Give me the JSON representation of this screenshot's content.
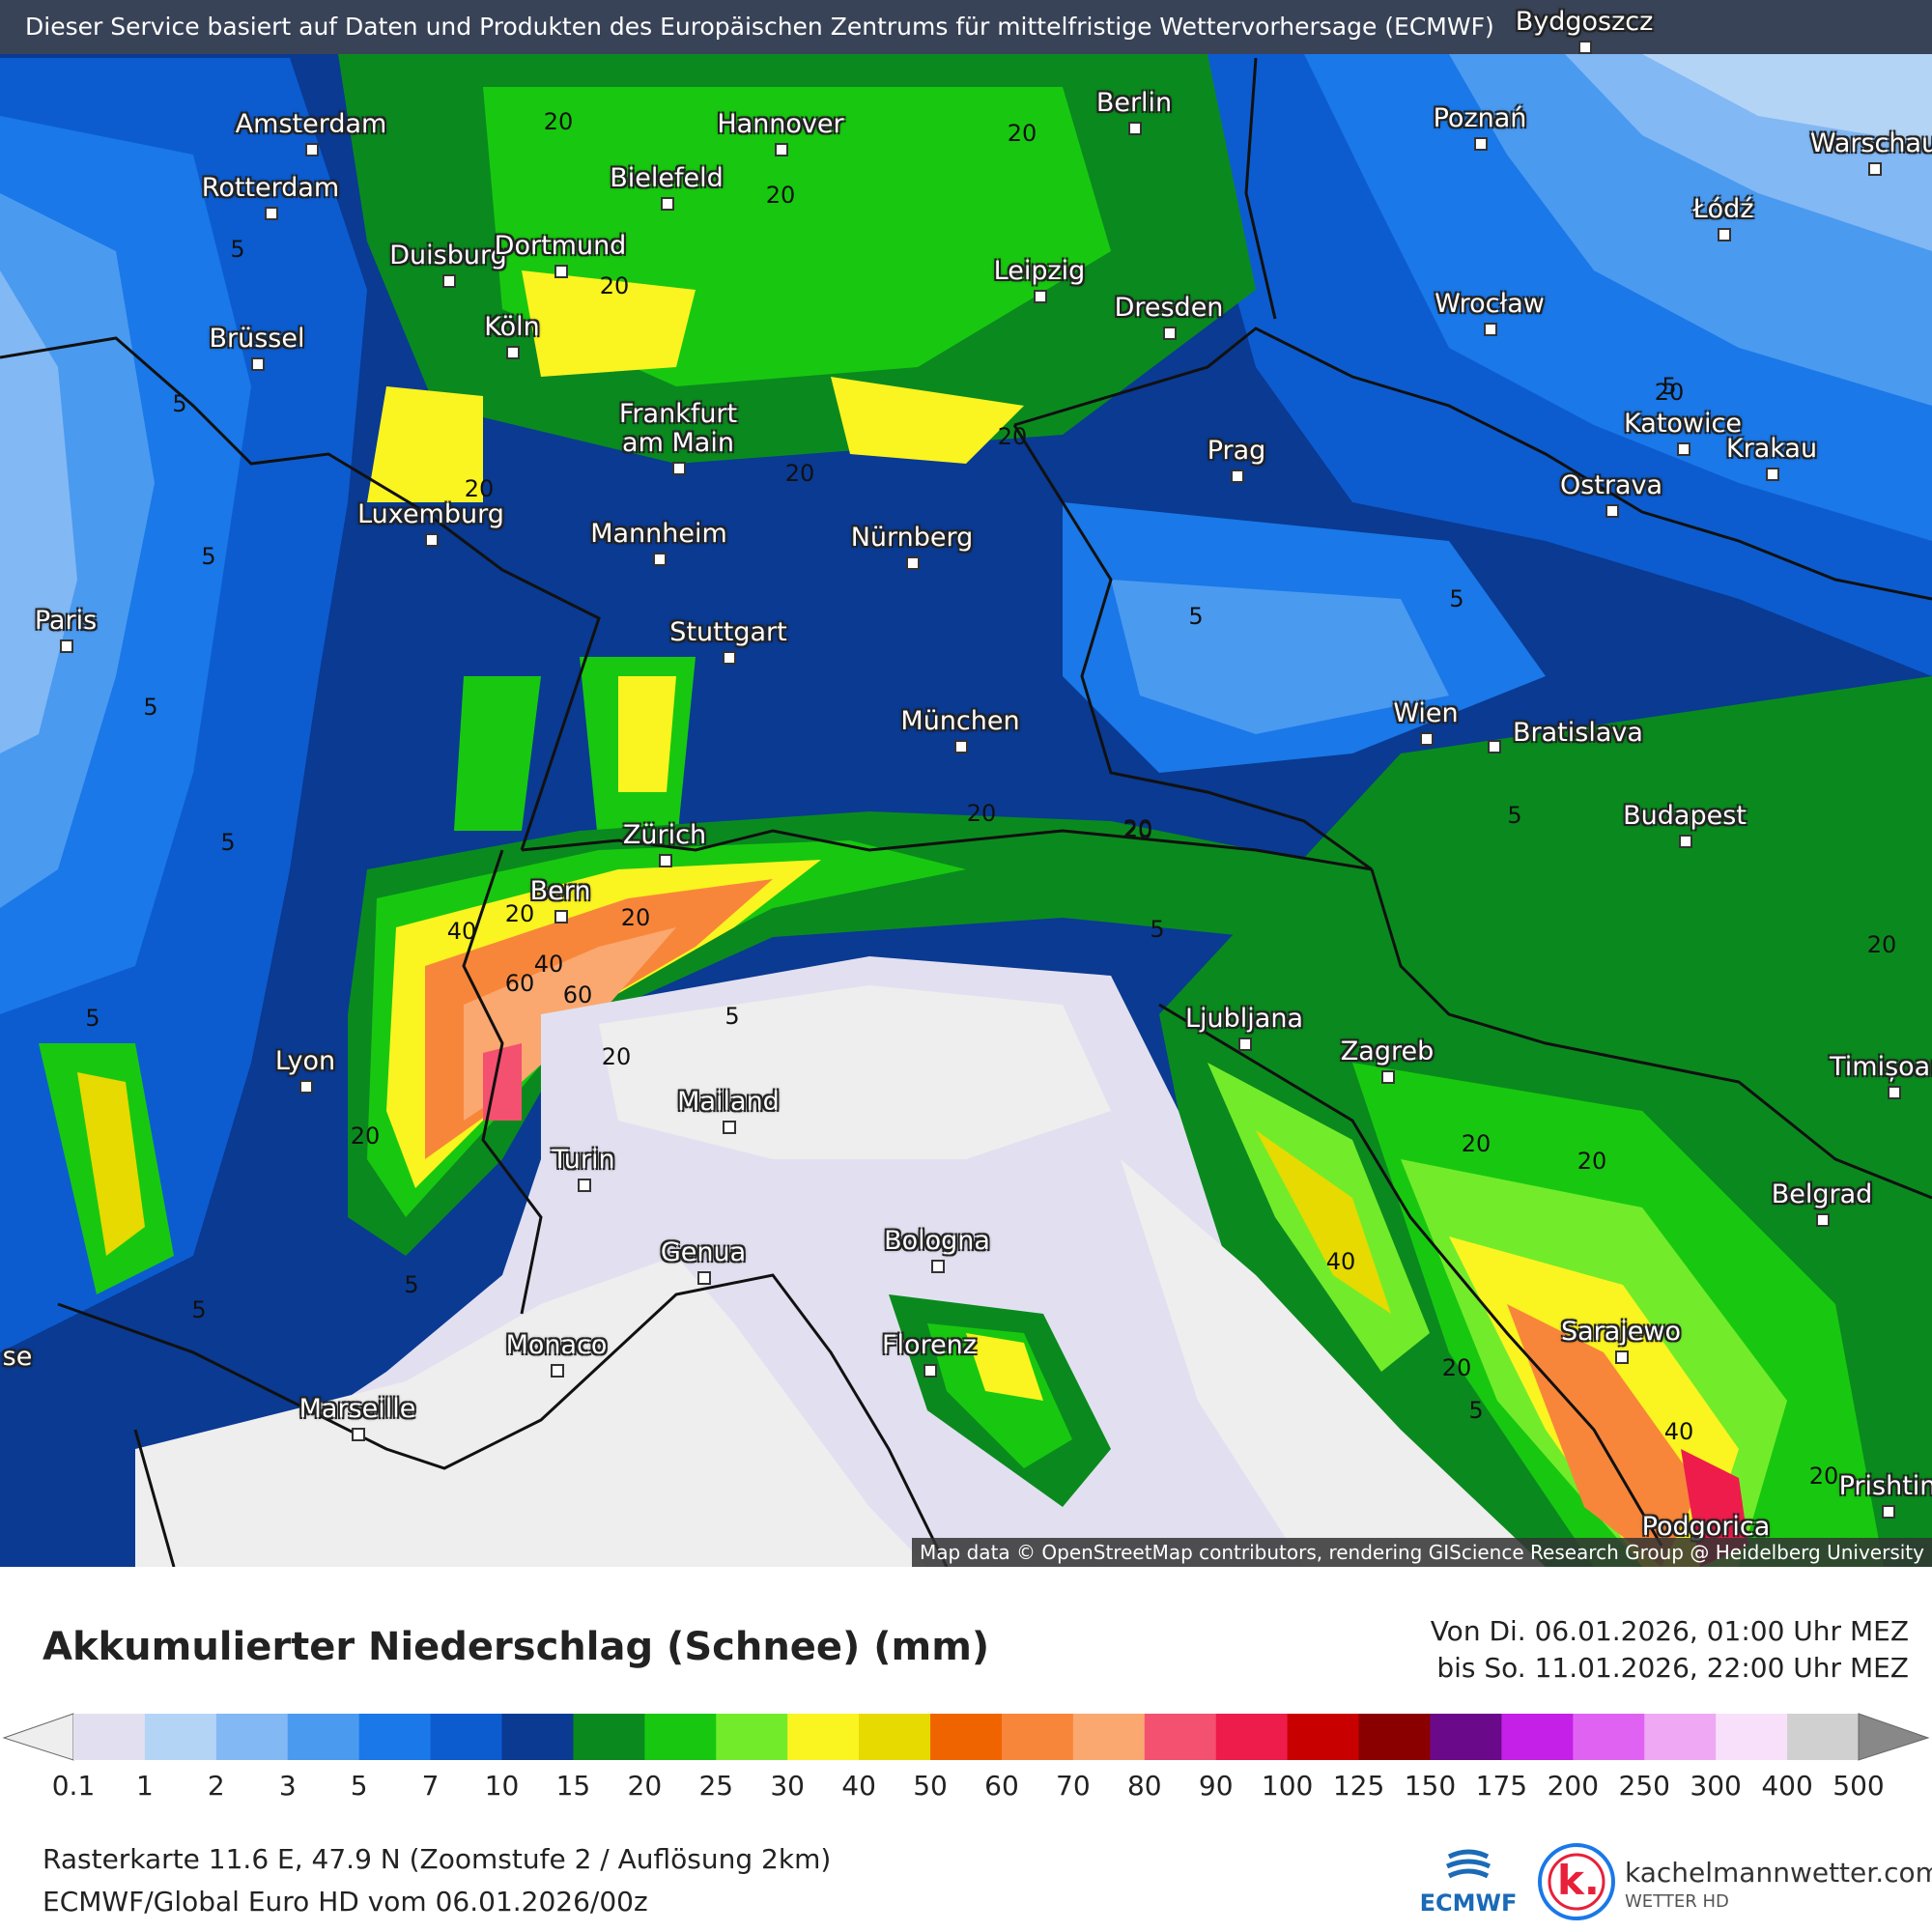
{
  "banner": "Dieser Service basiert auf Daten und Produkten des Europäischen Zentrums für mittelfristige Wettervorhersage (ECMWF)",
  "attribution": "Map data © OpenStreetMap contributors, rendering GIScience Research Group @ Heidelberg University",
  "cities": {
    "bydgoszcz": "Bydgoszcz",
    "amsterdam": "Amsterdam",
    "rotterdam": "Rotterdam",
    "hannover": "Hannover",
    "berlin": "Berlin",
    "poznan": "Poznań",
    "warschau": "Warschau",
    "bielefeld": "Bielefeld",
    "duisburg": "Duisburg",
    "dortmund": "Dortmund",
    "leipzig": "Leipzig",
    "lodz": "Łódź",
    "bruessel": "Brüssel",
    "koeln": "Köln",
    "dresden": "Dresden",
    "wroclaw": "Wrocław",
    "frankfurt": "Frankfurt am Main",
    "prag": "Prag",
    "katowice": "Katowice",
    "krakau": "Krakau",
    "ostrava": "Ostrava",
    "luxemburg": "Luxemburg",
    "mannheim": "Mannheim",
    "nuernberg": "Nürnberg",
    "paris": "Paris",
    "stuttgart": "Stuttgart",
    "muenchen": "München",
    "wien": "Wien",
    "bratislava": "Bratislava",
    "budapest": "Budapest",
    "zuerich": "Zürich",
    "bern": "Bern",
    "ljubljana": "Ljubljana",
    "zagreb": "Zagreb",
    "lyon": "Lyon",
    "mailand": "Mailand",
    "timisoara": "Timișoara",
    "turin": "Turin",
    "belgrad": "Belgrad",
    "genua": "Genua",
    "bologna": "Bologna",
    "monaco": "Monaco",
    "florenz": "Florenz",
    "sarajewo": "Sarajewo",
    "marseille": "Marseille",
    "nimes": "se",
    "podgorica": "Podgorica",
    "prishtina": "Prishtin"
  },
  "contour_labels": {
    "c1": "20",
    "c2": "20",
    "c3": "20",
    "c4": "20",
    "c5": "5",
    "c6": "20",
    "c7": "5",
    "c8": "20",
    "c9": "20",
    "c10": "20",
    "c11": "5",
    "c12": "5",
    "c13": "5",
    "c14": "5",
    "c15": "5",
    "c16": "5",
    "c17": "20",
    "c18": "20",
    "c19": "5",
    "c20": "5",
    "c21": "40",
    "c22": "20",
    "c23": "40",
    "c24": "60",
    "c25": "60",
    "c26": "20",
    "c27": "20",
    "c28": "20",
    "c29": "20",
    "c30": "5",
    "c31": "20",
    "c32": "20",
    "c33": "40",
    "c34": "20",
    "c35": "5",
    "c36": "40",
    "c37": "20",
    "c38": "5",
    "c39": "5",
    "c40": "5",
    "c41": "20"
  },
  "legend": {
    "title": "Akkumulierter Niederschlag (Schnee) (mm)",
    "period_from": "Von Di. 06.01.2026, 01:00 Uhr MEZ",
    "period_to": "bis So. 11.01.2026, 22:00 Uhr MEZ",
    "scale_colors": [
      "#e2e0f0",
      "#b4d4f6",
      "#82b8f4",
      "#4a9af0",
      "#1a78e8",
      "#0c5cd0",
      "#0a3a92",
      "#0a8a1e",
      "#18c810",
      "#72ec2a",
      "#faf420",
      "#e6da00",
      "#f06400",
      "#f8863a",
      "#faa870",
      "#f45070",
      "#ee1c4a",
      "#c80000",
      "#8a0000",
      "#6a0a8a",
      "#c420e8",
      "#e062f2",
      "#eea8f4",
      "#f8e0fa",
      "#d0d0d0"
    ],
    "scale_ticks": [
      "0.1",
      "1",
      "2",
      "3",
      "5",
      "7",
      "10",
      "15",
      "20",
      "25",
      "30",
      "40",
      "50",
      "60",
      "70",
      "80",
      "90",
      "100",
      "125",
      "150",
      "175",
      "200",
      "250",
      "300",
      "400",
      "500"
    ],
    "raster": "Rasterkarte 11.6 E, 47.9 N (Zoomstufe 2 / Auflösung 2km)",
    "model": "ECMWF/Global Euro HD vom  06.01.2026/00z",
    "logo_ecmwf": "ECMWF",
    "logo_brand": "kachelmannwetter.com",
    "logo_sub": "WETTER HD",
    "logo_k": "k."
  }
}
